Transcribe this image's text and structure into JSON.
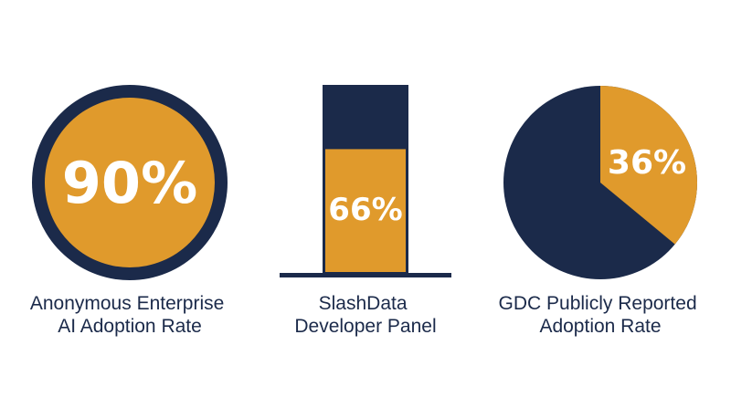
{
  "colors": {
    "navy": "#1b2a4a",
    "gold": "#e09a2c",
    "background": "#ffffff"
  },
  "chart_data": [
    {
      "type": "pie",
      "style": "filled circle with ring",
      "value_percent": 90,
      "value_label": "90%",
      "caption_lines": [
        "Anonymous Enterprise",
        "AI Adoption Rate"
      ]
    },
    {
      "type": "bar",
      "style": "single stacked column on a baseline",
      "value_percent": 66,
      "value_label": "66%",
      "caption_lines": [
        "SlashData",
        "Developer Panel"
      ]
    },
    {
      "type": "pie",
      "value_percent": 36,
      "value_label": "36%",
      "caption_lines": [
        "GDC Publicly Reported",
        "Adoption Rate"
      ]
    }
  ]
}
